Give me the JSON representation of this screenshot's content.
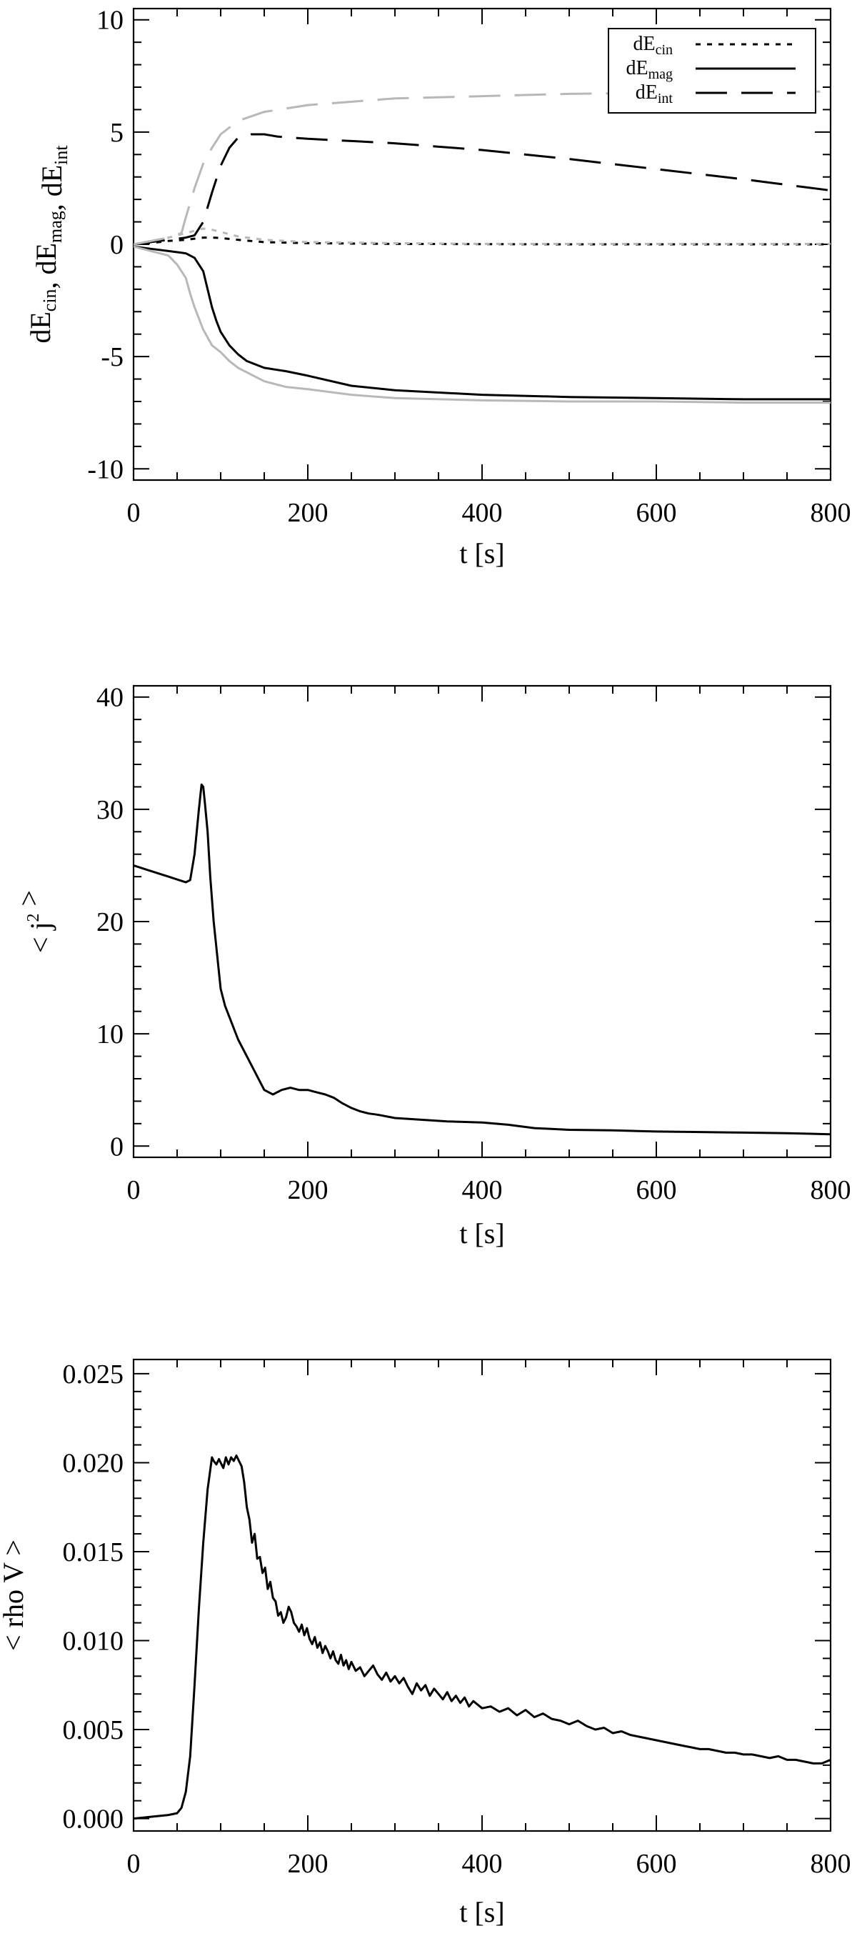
{
  "chart_data": [
    {
      "type": "line",
      "xlabel": "t  [s]",
      "ylabel": {
        "parts": [
          [
            "dE",
            ""
          ],
          [
            "cin",
            "sub"
          ],
          [
            ", dE",
            ""
          ],
          [
            "mag",
            "sub"
          ],
          [
            ", dE",
            ""
          ],
          [
            "int",
            "sub"
          ]
        ]
      },
      "xlim": [
        0,
        800
      ],
      "ylim": [
        -10.5,
        10.5
      ],
      "xticks": [
        0,
        200,
        400,
        600,
        800
      ],
      "yticks": [
        -10,
        -5,
        0,
        5,
        10
      ],
      "legend_position": "top-right",
      "colors": {
        "primary": "#000000",
        "reference": "#b8b8b8"
      },
      "series": [
        {
          "name": "dE_cin",
          "label_main": "dE",
          "label_sub": "cin",
          "style": "dotted",
          "color": "#000000",
          "x": [
            0,
            20,
            40,
            60,
            70,
            80,
            90,
            100,
            120,
            150,
            200,
            300,
            400,
            500,
            600,
            700,
            800
          ],
          "y": [
            0,
            0.05,
            0.15,
            0.2,
            0.25,
            0.3,
            0.3,
            0.28,
            0.2,
            0.1,
            0.05,
            0.02,
            0.01,
            0.0,
            0.0,
            0.0,
            0.0
          ]
        },
        {
          "name": "dE_mag",
          "label_main": "dE",
          "label_sub": "mag",
          "style": "solid",
          "color": "#000000",
          "x": [
            0,
            20,
            40,
            60,
            70,
            80,
            85,
            90,
            95,
            100,
            110,
            120,
            130,
            150,
            175,
            200,
            250,
            300,
            400,
            500,
            600,
            700,
            800
          ],
          "y": [
            -0.1,
            -0.2,
            -0.3,
            -0.4,
            -0.6,
            -1.2,
            -2.0,
            -2.8,
            -3.4,
            -3.9,
            -4.5,
            -4.9,
            -5.2,
            -5.5,
            -5.65,
            -5.85,
            -6.3,
            -6.5,
            -6.7,
            -6.8,
            -6.85,
            -6.9,
            -6.9
          ]
        },
        {
          "name": "dE_int",
          "label_main": "dE",
          "label_sub": "int",
          "style": "dashed",
          "color": "#000000",
          "x": [
            0,
            40,
            60,
            70,
            80,
            90,
            100,
            110,
            120,
            135,
            150,
            165,
            200,
            250,
            300,
            400,
            500,
            600,
            700,
            800
          ],
          "y": [
            0,
            0.2,
            0.3,
            0.4,
            1.0,
            2.3,
            3.5,
            4.3,
            4.75,
            4.9,
            4.9,
            4.8,
            4.7,
            4.6,
            4.5,
            4.2,
            3.8,
            3.35,
            2.9,
            2.4
          ]
        },
        {
          "name": "dE_cin_ref",
          "style": "dotted",
          "color": "#b8b8b8",
          "x": [
            0,
            40,
            60,
            70,
            80,
            90,
            100,
            120,
            150,
            200,
            300,
            400,
            800
          ],
          "y": [
            0,
            0.3,
            0.5,
            0.6,
            0.7,
            0.65,
            0.55,
            0.35,
            0.2,
            0.1,
            0.05,
            0.02,
            0.02
          ]
        },
        {
          "name": "dE_mag_ref",
          "style": "solid",
          "color": "#b8b8b8",
          "x": [
            0,
            20,
            40,
            50,
            60,
            65,
            70,
            80,
            90,
            100,
            110,
            120,
            135,
            150,
            175,
            200,
            250,
            300,
            400,
            500,
            600,
            700,
            800
          ],
          "y": [
            -0.1,
            -0.3,
            -0.5,
            -0.9,
            -1.5,
            -2.2,
            -2.8,
            -3.8,
            -4.5,
            -4.8,
            -5.2,
            -5.5,
            -5.8,
            -6.1,
            -6.35,
            -6.45,
            -6.7,
            -6.85,
            -6.95,
            -7.0,
            -7.0,
            -7.05,
            -7.05
          ]
        },
        {
          "name": "dE_int_ref",
          "style": "dashed",
          "color": "#b8b8b8",
          "x": [
            0,
            40,
            55,
            60,
            70,
            80,
            90,
            100,
            120,
            150,
            200,
            300,
            400,
            500,
            600,
            700,
            800
          ],
          "y": [
            0,
            0.3,
            0.5,
            1.2,
            2.5,
            3.6,
            4.3,
            4.9,
            5.5,
            5.9,
            6.2,
            6.5,
            6.6,
            6.7,
            6.75,
            6.8,
            6.8
          ]
        }
      ]
    },
    {
      "type": "line",
      "xlabel": "t  [s]",
      "ylabel": {
        "parts": [
          [
            "< j",
            ""
          ],
          [
            "2",
            "sup"
          ],
          [
            " >",
            ""
          ]
        ]
      },
      "xlim": [
        0,
        800
      ],
      "ylim": [
        -1,
        41
      ],
      "xticks": [
        0,
        200,
        400,
        600,
        800
      ],
      "yticks": [
        0,
        10,
        20,
        30,
        40
      ],
      "series": [
        {
          "name": "",
          "style": "solid",
          "color": "#000000",
          "x": [
            0,
            20,
            40,
            60,
            65,
            70,
            75,
            78,
            80,
            82,
            85,
            88,
            92,
            96,
            100,
            105,
            110,
            120,
            130,
            140,
            150,
            160,
            170,
            180,
            190,
            200,
            210,
            220,
            230,
            240,
            250,
            260,
            270,
            280,
            300,
            330,
            360,
            400,
            430,
            460,
            500,
            550,
            600,
            650,
            700,
            750,
            800
          ],
          "y": [
            25,
            24.5,
            24,
            23.5,
            23.7,
            26,
            30,
            32.2,
            32.0,
            30.5,
            28,
            24,
            20,
            17,
            14,
            12.5,
            11.5,
            9.5,
            8,
            6.5,
            5,
            4.6,
            5.0,
            5.2,
            5.0,
            5.0,
            4.8,
            4.6,
            4.3,
            3.8,
            3.4,
            3.1,
            2.9,
            2.8,
            2.5,
            2.35,
            2.2,
            2.1,
            1.9,
            1.6,
            1.45,
            1.4,
            1.3,
            1.25,
            1.2,
            1.15,
            1.05
          ]
        }
      ]
    },
    {
      "type": "line",
      "xlabel": "t  [s]",
      "ylabel": "< rho V >",
      "xlim": [
        0,
        800
      ],
      "ylim": [
        -0.0007,
        0.0258
      ],
      "xticks": [
        0,
        200,
        400,
        600,
        800
      ],
      "yticks": [
        0.0,
        0.005,
        0.01,
        0.015,
        0.02,
        0.025
      ],
      "ytick_labels": [
        "0.000",
        "0.005",
        "0.010",
        "0.015",
        "0.020",
        "0.025"
      ],
      "series": [
        {
          "name": "",
          "style": "solid",
          "color": "#000000",
          "x": [
            0,
            20,
            40,
            50,
            55,
            60,
            65,
            70,
            75,
            80,
            85,
            90,
            92,
            95,
            98,
            100,
            103,
            106,
            109,
            112,
            115,
            118,
            121,
            124,
            127,
            130,
            133,
            136,
            139,
            142,
            145,
            148,
            151,
            154,
            157,
            160,
            163,
            166,
            169,
            172,
            175,
            178,
            181,
            184,
            187,
            190,
            193,
            196,
            199,
            202,
            205,
            208,
            211,
            214,
            217,
            220,
            223,
            226,
            229,
            232,
            235,
            238,
            241,
            244,
            247,
            250,
            255,
            260,
            265,
            270,
            275,
            280,
            285,
            290,
            295,
            300,
            305,
            310,
            315,
            320,
            325,
            330,
            335,
            340,
            345,
            350,
            355,
            360,
            365,
            370,
            375,
            380,
            385,
            390,
            395,
            400,
            410,
            420,
            430,
            440,
            450,
            460,
            470,
            480,
            490,
            500,
            510,
            520,
            530,
            540,
            550,
            560,
            570,
            580,
            590,
            600,
            610,
            620,
            630,
            640,
            650,
            660,
            670,
            680,
            690,
            700,
            710,
            720,
            730,
            740,
            750,
            760,
            770,
            780,
            790,
            800
          ],
          "y": [
            0.0,
            0.0001,
            0.0002,
            0.0003,
            0.0006,
            0.0015,
            0.0035,
            0.0075,
            0.0118,
            0.0155,
            0.0185,
            0.0203,
            0.0201,
            0.0199,
            0.0202,
            0.02,
            0.0197,
            0.0203,
            0.0199,
            0.0203,
            0.0201,
            0.0204,
            0.0201,
            0.0198,
            0.0189,
            0.0175,
            0.0168,
            0.0155,
            0.016,
            0.0146,
            0.0147,
            0.0138,
            0.0141,
            0.0129,
            0.0133,
            0.0124,
            0.0122,
            0.0114,
            0.0116,
            0.011,
            0.0113,
            0.0119,
            0.0116,
            0.011,
            0.0108,
            0.0105,
            0.0109,
            0.0103,
            0.0107,
            0.0101,
            0.0098,
            0.0102,
            0.0096,
            0.0099,
            0.0093,
            0.0097,
            0.0094,
            0.009,
            0.0094,
            0.0089,
            0.0087,
            0.0092,
            0.0086,
            0.0089,
            0.0084,
            0.0088,
            0.0083,
            0.0085,
            0.008,
            0.0083,
            0.0086,
            0.0081,
            0.0078,
            0.0082,
            0.0077,
            0.008,
            0.0076,
            0.0079,
            0.0074,
            0.007,
            0.0076,
            0.0072,
            0.0075,
            0.0069,
            0.0073,
            0.007,
            0.0067,
            0.0071,
            0.0066,
            0.0069,
            0.0065,
            0.0068,
            0.0063,
            0.0066,
            0.0064,
            0.0062,
            0.0063,
            0.006,
            0.0062,
            0.0058,
            0.0061,
            0.0057,
            0.0059,
            0.0056,
            0.0055,
            0.0053,
            0.0055,
            0.0052,
            0.005,
            0.0051,
            0.0048,
            0.0049,
            0.0047,
            0.0046,
            0.0045,
            0.0044,
            0.0043,
            0.0042,
            0.0041,
            0.004,
            0.0039,
            0.0039,
            0.0038,
            0.0037,
            0.0037,
            0.0036,
            0.0036,
            0.0035,
            0.0034,
            0.0035,
            0.0033,
            0.0033,
            0.0032,
            0.0031,
            0.0031,
            0.0033
          ]
        }
      ]
    }
  ]
}
